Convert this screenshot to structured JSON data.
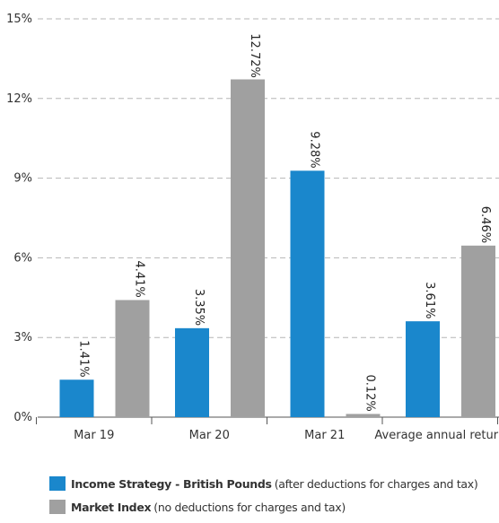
{
  "chart_data": {
    "type": "bar",
    "categories": [
      "Mar 19",
      "Mar 20",
      "Mar 21",
      "Average annual return"
    ],
    "series": [
      {
        "name": "Income Strategy - British Pounds",
        "note": "(after deductions for charges and tax)",
        "color": "#1a87cc",
        "values": [
          1.41,
          3.35,
          9.28,
          3.61
        ],
        "labels": [
          "1.41%",
          "3.35%",
          "9.28%",
          "3.61%"
        ]
      },
      {
        "name": "Market Index",
        "note": "(no deductions for charges and tax)",
        "color": "#a0a0a0",
        "values": [
          4.41,
          12.72,
          0.12,
          6.46
        ],
        "labels": [
          "4.41%",
          "12.72%",
          "0.12%",
          "6.46%"
        ]
      }
    ],
    "y_ticks": [
      "0%",
      "3%",
      "6%",
      "9%",
      "12%",
      "15%"
    ],
    "ylim": [
      0,
      15
    ],
    "grid": true,
    "legend_position": "bottom-left"
  }
}
